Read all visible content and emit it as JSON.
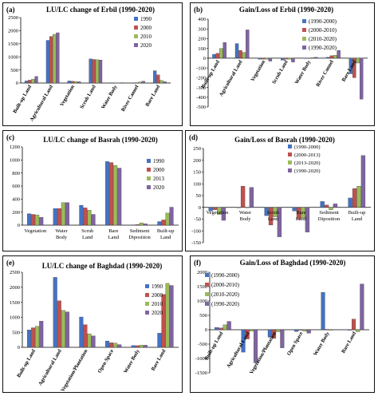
{
  "colors": {
    "c1": "#4472C4",
    "c2": "#C0504D",
    "c3": "#9BBB59",
    "c4": "#8064A2"
  },
  "chart_data": [
    {
      "type": "bar",
      "panel_label": "(a)",
      "title": "LU/LC change of Erbil (1990-2020)",
      "categories": [
        "Built-up Land",
        "Agricultural Land",
        "Vegetation",
        "Scrub Land",
        "Water Body",
        "River Cannel",
        "Bare Land"
      ],
      "series": [
        {
          "name": "1990",
          "values": [
            80,
            1630,
            80,
            920,
            5,
            5,
            470
          ]
        },
        {
          "name": "2000",
          "values": [
            110,
            1780,
            70,
            900,
            8,
            15,
            310
          ]
        },
        {
          "name": "2010",
          "values": [
            150,
            1860,
            60,
            890,
            10,
            40,
            100
          ]
        },
        {
          "name": "2020",
          "values": [
            250,
            1920,
            50,
            880,
            15,
            70,
            50
          ]
        }
      ],
      "ylim": [
        0,
        2500
      ],
      "yticks": [
        "0",
        "500",
        "1000",
        "1500",
        "2000",
        "2500"
      ],
      "grid": false,
      "legend": "right"
    },
    {
      "type": "bar",
      "panel_label": "(b)",
      "title": "Gain/Loss of Erbil (1990-2020)",
      "categories": [
        "Built-up Land",
        "Agricultural Land",
        "Vegetation",
        "Scrub Land",
        "Water Body",
        "River Cannel",
        "Bare Land"
      ],
      "series": [
        {
          "name": "(1990-2000)",
          "values": [
            40,
            150,
            -10,
            -20,
            3,
            10,
            -160
          ]
        },
        {
          "name": "(2000-2010)",
          "values": [
            50,
            80,
            -10,
            -10,
            3,
            25,
            -200
          ]
        },
        {
          "name": "(2010-2020)",
          "values": [
            100,
            60,
            -10,
            -10,
            5,
            30,
            -50
          ]
        },
        {
          "name": "(1990-2020)",
          "values": [
            160,
            290,
            -30,
            -40,
            10,
            80,
            -420
          ]
        }
      ],
      "ylim": [
        -500,
        400
      ],
      "yticks": [
        "-500",
        "-400",
        "-300",
        "-200",
        "-100",
        "0",
        "100",
        "200",
        "300",
        "400"
      ],
      "grid": false,
      "legend": "top-right"
    },
    {
      "type": "bar",
      "panel_label": "(c)",
      "title": "LU/LC change of Basrah (1990-2020)",
      "categories": [
        "Vegetation",
        "Water Body",
        "Scrub Land",
        "Bare Land",
        "Sediment Diposition",
        "Built-up Land"
      ],
      "series": [
        {
          "name": "1990",
          "values": [
            175,
            255,
            305,
            975,
            5,
            55
          ]
        },
        {
          "name": "2000",
          "values": [
            165,
            255,
            265,
            960,
            10,
            80
          ]
        },
        {
          "name": "2013",
          "values": [
            155,
            345,
            230,
            915,
            35,
            185
          ]
        },
        {
          "name": "2020",
          "values": [
            120,
            345,
            165,
            875,
            20,
            275
          ]
        }
      ],
      "ylim": [
        0,
        1200
      ],
      "yticks": [
        "0",
        "200",
        "400",
        "600",
        "800",
        "1000",
        "1200"
      ],
      "grid": false,
      "legend": "right"
    },
    {
      "type": "bar",
      "panel_label": "(d)",
      "title": "Gain/Loss of Basrah (1990-2020)",
      "categories": [
        "Vegetation",
        "Water Body",
        "Scrub Land",
        "Bare Land",
        "Sediment Diposition",
        "Built-up Land"
      ],
      "series": [
        {
          "name": "(1990-2000)",
          "values": [
            -15,
            0,
            -35,
            -15,
            25,
            40
          ]
        },
        {
          "name": "(2000-2013)",
          "values": [
            -10,
            90,
            -75,
            -50,
            10,
            80
          ]
        },
        {
          "name": "(2013-2020)",
          "values": [
            -30,
            0,
            -40,
            -45,
            -10,
            90
          ]
        },
        {
          "name": "(1990-2020)",
          "values": [
            -55,
            85,
            -125,
            -105,
            15,
            220
          ]
        }
      ],
      "ylim": [
        -150,
        250
      ],
      "yticks": [
        "-150",
        "-100",
        "-50",
        "0",
        "50",
        "100",
        "150",
        "200",
        "250"
      ],
      "grid": false,
      "legend": "top-right"
    },
    {
      "type": "bar",
      "panel_label": "(e)",
      "title": "LU/LC change of Baghdad (1990-2020)",
      "categories": [
        "Built-up Land",
        "Agricultural Land",
        "Vegetation/Plantation",
        "Open Space",
        "Water Body",
        "Bare Land"
      ],
      "series": [
        {
          "name": "1990",
          "values": [
            580,
            2330,
            1010,
            210,
            60,
            470
          ]
        },
        {
          "name": "2000",
          "values": [
            650,
            1550,
            750,
            150,
            55,
            1760
          ]
        },
        {
          "name": "2010",
          "values": [
            700,
            1230,
            450,
            140,
            70,
            2130
          ]
        },
        {
          "name": "2020",
          "values": [
            870,
            1180,
            380,
            90,
            70,
            2060
          ]
        }
      ],
      "ylim": [
        0,
        2500
      ],
      "yticks": [
        "0",
        "500",
        "1000",
        "1500",
        "2000",
        "2500"
      ],
      "grid": false,
      "legend": "right"
    },
    {
      "type": "bar",
      "panel_label": "(f)",
      "title": "Gain/Loss of Baghdad (1990-2020)",
      "categories": [
        "Built-up Land",
        "Agricultural Land",
        "Vegetation/Plantation",
        "Open Space",
        "Water Body",
        "Bare Land"
      ],
      "series": [
        {
          "name": "(1990-2000)",
          "values": [
            80,
            -780,
            -260,
            -60,
            1300,
            -10
          ]
        },
        {
          "name": "(2000-2010)",
          "values": [
            60,
            -320,
            -300,
            -10,
            15,
            370
          ]
        },
        {
          "name": "(2010-2020)",
          "values": [
            170,
            -50,
            -70,
            -50,
            0,
            -70
          ]
        },
        {
          "name": "(1990-2020)",
          "values": [
            290,
            -1150,
            -630,
            -120,
            10,
            1590
          ]
        }
      ],
      "ylim": [
        -1500,
        2000
      ],
      "yticks": [
        "-1500",
        "-1000",
        "-500",
        "0",
        "500",
        "1000",
        "1500",
        "2000"
      ],
      "grid": false,
      "legend": "top-left"
    }
  ]
}
